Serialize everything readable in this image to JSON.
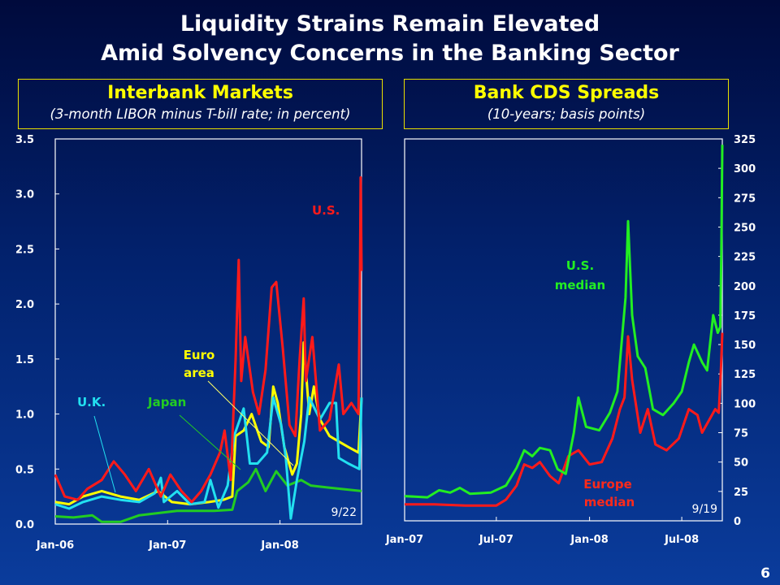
{
  "title_line1": "Liquidity Strains Remain Elevated",
  "title_line2": "Amid Solvency Concerns in the Banking Sector",
  "page_number": "6",
  "chart_data": [
    {
      "type": "line",
      "title": "Interbank Markets",
      "subtitle": "(3-month LIBOR minus T-bill rate; in percent)",
      "ylim": [
        0,
        3.5
      ],
      "yticks": [
        "0.0",
        "0.5",
        "1.0",
        "1.5",
        "2.0",
        "2.5",
        "3.0",
        "3.5"
      ],
      "xlim": [
        "2006-01-01",
        "2008-09-22"
      ],
      "xticks": [
        {
          "date": "2006-01-01",
          "label": "Jan-06"
        },
        {
          "date": "2007-01-01",
          "label": "Jan-07"
        },
        {
          "date": "2008-01-01",
          "label": "Jan-08"
        }
      ],
      "end_date_label": "9/22",
      "grid": false,
      "series": [
        {
          "name": "U.S.",
          "color": "#ff1a1a",
          "points": [
            [
              "2006-01-01",
              0.45
            ],
            [
              "2006-02-01",
              0.25
            ],
            [
              "2006-03-15",
              0.22
            ],
            [
              "2006-04-15",
              0.32
            ],
            [
              "2006-06-01",
              0.4
            ],
            [
              "2006-07-10",
              0.57
            ],
            [
              "2006-08-15",
              0.45
            ],
            [
              "2006-09-20",
              0.3
            ],
            [
              "2006-11-01",
              0.5
            ],
            [
              "2006-12-10",
              0.25
            ],
            [
              "2007-01-10",
              0.45
            ],
            [
              "2007-02-15",
              0.3
            ],
            [
              "2007-03-20",
              0.2
            ],
            [
              "2007-04-20",
              0.3
            ],
            [
              "2007-05-20",
              0.45
            ],
            [
              "2007-06-20",
              0.65
            ],
            [
              "2007-07-05",
              0.85
            ],
            [
              "2007-07-25",
              0.4
            ],
            [
              "2007-08-10",
              1.5
            ],
            [
              "2007-08-20",
              2.4
            ],
            [
              "2007-08-28",
              1.3
            ],
            [
              "2007-09-10",
              1.7
            ],
            [
              "2007-10-05",
              1.2
            ],
            [
              "2007-10-25",
              1.0
            ],
            [
              "2007-11-15",
              1.4
            ],
            [
              "2007-12-05",
              2.15
            ],
            [
              "2007-12-20",
              2.2
            ],
            [
              "2008-01-10",
              1.6
            ],
            [
              "2008-02-01",
              0.9
            ],
            [
              "2008-02-20",
              0.8
            ],
            [
              "2008-03-05",
              1.5
            ],
            [
              "2008-03-18",
              2.05
            ],
            [
              "2008-03-25",
              1.3
            ],
            [
              "2008-04-15",
              1.7
            ],
            [
              "2008-05-10",
              0.85
            ],
            [
              "2008-06-10",
              0.95
            ],
            [
              "2008-07-10",
              1.45
            ],
            [
              "2008-07-25",
              1.0
            ],
            [
              "2008-08-20",
              1.1
            ],
            [
              "2008-09-12",
              1.0
            ],
            [
              "2008-09-17",
              2.3
            ],
            [
              "2008-09-19",
              3.15
            ],
            [
              "2008-09-22",
              2.3
            ]
          ]
        },
        {
          "name": "Euro area",
          "color": "#ffff00",
          "points": [
            [
              "2006-01-01",
              0.2
            ],
            [
              "2006-02-15",
              0.18
            ],
            [
              "2006-04-01",
              0.25
            ],
            [
              "2006-06-01",
              0.3
            ],
            [
              "2006-08-01",
              0.25
            ],
            [
              "2006-10-01",
              0.22
            ],
            [
              "2006-12-01",
              0.3
            ],
            [
              "2007-01-15",
              0.2
            ],
            [
              "2007-03-15",
              0.18
            ],
            [
              "2007-05-15",
              0.2
            ],
            [
              "2007-07-01",
              0.22
            ],
            [
              "2007-07-30",
              0.25
            ],
            [
              "2007-08-10",
              0.8
            ],
            [
              "2007-09-05",
              0.85
            ],
            [
              "2007-10-01",
              1.0
            ],
            [
              "2007-11-01",
              0.75
            ],
            [
              "2007-11-25",
              0.7
            ],
            [
              "2007-12-10",
              1.25
            ],
            [
              "2007-12-25",
              1.1
            ],
            [
              "2008-01-15",
              0.7
            ],
            [
              "2008-02-10",
              0.45
            ],
            [
              "2008-02-25",
              0.55
            ],
            [
              "2008-03-10",
              1.0
            ],
            [
              "2008-03-18",
              1.65
            ],
            [
              "2008-04-05",
              1.0
            ],
            [
              "2008-04-20",
              1.25
            ],
            [
              "2008-05-10",
              0.95
            ],
            [
              "2008-06-10",
              0.8
            ],
            [
              "2008-07-10",
              0.75
            ],
            [
              "2008-08-10",
              0.7
            ],
            [
              "2008-09-12",
              0.65
            ],
            [
              "2008-09-22",
              1.15
            ]
          ]
        },
        {
          "name": "U.K.",
          "color": "#22e0f0",
          "points": [
            [
              "2006-01-01",
              0.18
            ],
            [
              "2006-02-15",
              0.14
            ],
            [
              "2006-04-01",
              0.2
            ],
            [
              "2006-06-01",
              0.25
            ],
            [
              "2006-08-01",
              0.22
            ],
            [
              "2006-10-01",
              0.2
            ],
            [
              "2006-11-20",
              0.28
            ],
            [
              "2006-12-10",
              0.42
            ],
            [
              "2006-12-20",
              0.2
            ],
            [
              "2007-02-01",
              0.3
            ],
            [
              "2007-03-15",
              0.18
            ],
            [
              "2007-05-01",
              0.2
            ],
            [
              "2007-05-20",
              0.4
            ],
            [
              "2007-06-15",
              0.15
            ],
            [
              "2007-07-15",
              0.35
            ],
            [
              "2007-08-05",
              0.8
            ],
            [
              "2007-09-05",
              1.05
            ],
            [
              "2007-09-25",
              0.55
            ],
            [
              "2007-10-20",
              0.55
            ],
            [
              "2007-11-20",
              0.65
            ],
            [
              "2007-12-10",
              1.15
            ],
            [
              "2008-01-05",
              0.9
            ],
            [
              "2008-01-20",
              0.6
            ],
            [
              "2008-02-05",
              0.05
            ],
            [
              "2008-02-25",
              0.4
            ],
            [
              "2008-03-20",
              0.75
            ],
            [
              "2008-04-05",
              1.15
            ],
            [
              "2008-05-10",
              0.95
            ],
            [
              "2008-06-10",
              1.1
            ],
            [
              "2008-07-01",
              1.1
            ],
            [
              "2008-07-10",
              0.6
            ],
            [
              "2008-08-10",
              0.55
            ],
            [
              "2008-09-15",
              0.5
            ],
            [
              "2008-09-22",
              1.15
            ]
          ]
        },
        {
          "name": "Japan",
          "color": "#22cc22",
          "points": [
            [
              "2006-01-01",
              0.07
            ],
            [
              "2006-03-01",
              0.06
            ],
            [
              "2006-05-01",
              0.08
            ],
            [
              "2006-06-01",
              0.02
            ],
            [
              "2006-08-01",
              0.02
            ],
            [
              "2006-10-01",
              0.08
            ],
            [
              "2006-12-01",
              0.1
            ],
            [
              "2007-02-01",
              0.12
            ],
            [
              "2007-04-01",
              0.12
            ],
            [
              "2007-06-01",
              0.12
            ],
            [
              "2007-07-30",
              0.13
            ],
            [
              "2007-08-15",
              0.3
            ],
            [
              "2007-09-20",
              0.38
            ],
            [
              "2007-10-15",
              0.5
            ],
            [
              "2007-11-15",
              0.3
            ],
            [
              "2007-12-20",
              0.48
            ],
            [
              "2008-01-25",
              0.35
            ],
            [
              "2008-03-10",
              0.4
            ],
            [
              "2008-04-10",
              0.35
            ],
            [
              "2008-06-10",
              0.33
            ],
            [
              "2008-09-22",
              0.3
            ]
          ]
        }
      ]
    },
    {
      "type": "line",
      "title": "Bank CDS Spreads",
      "subtitle": "(10-years; basis points)",
      "ylim": [
        0,
        325
      ],
      "yticks": [
        "0",
        "25",
        "50",
        "75",
        "100",
        "125",
        "150",
        "175",
        "200",
        "225",
        "250",
        "275",
        "300",
        "325"
      ],
      "xlim": [
        "2007-01-01",
        "2008-09-19"
      ],
      "xticks": [
        {
          "date": "2007-01-01",
          "label": "Jan-07"
        },
        {
          "date": "2007-07-01",
          "label": "Jul-07"
        },
        {
          "date": "2008-01-01",
          "label": "Jan-08"
        },
        {
          "date": "2008-07-01",
          "label": "Jul-08"
        }
      ],
      "end_date_label": "9/19",
      "grid": false,
      "series": [
        {
          "name": "U.S. median",
          "color": "#22ee22",
          "points": [
            [
              "2007-01-01",
              21
            ],
            [
              "2007-02-15",
              20
            ],
            [
              "2007-03-10",
              26
            ],
            [
              "2007-04-01",
              24
            ],
            [
              "2007-04-20",
              28
            ],
            [
              "2007-05-10",
              23
            ],
            [
              "2007-06-20",
              24
            ],
            [
              "2007-07-20",
              30
            ],
            [
              "2007-08-10",
              45
            ],
            [
              "2007-08-25",
              60
            ],
            [
              "2007-09-10",
              55
            ],
            [
              "2007-09-25",
              62
            ],
            [
              "2007-10-15",
              60
            ],
            [
              "2007-10-30",
              44
            ],
            [
              "2007-11-15",
              40
            ],
            [
              "2007-12-01",
              75
            ],
            [
              "2007-12-10",
              105
            ],
            [
              "2007-12-25",
              80
            ],
            [
              "2008-01-20",
              77
            ],
            [
              "2008-02-10",
              92
            ],
            [
              "2008-02-25",
              110
            ],
            [
              "2008-03-05",
              155
            ],
            [
              "2008-03-12",
              190
            ],
            [
              "2008-03-17",
              255
            ],
            [
              "2008-03-25",
              175
            ],
            [
              "2008-04-05",
              140
            ],
            [
              "2008-04-20",
              130
            ],
            [
              "2008-05-05",
              95
            ],
            [
              "2008-05-25",
              90
            ],
            [
              "2008-06-15",
              100
            ],
            [
              "2008-07-01",
              110
            ],
            [
              "2008-07-15",
              135
            ],
            [
              "2008-07-25",
              150
            ],
            [
              "2008-08-10",
              135
            ],
            [
              "2008-08-20",
              128
            ],
            [
              "2008-09-01",
              175
            ],
            [
              "2008-09-10",
              160
            ],
            [
              "2008-09-15",
              165
            ],
            [
              "2008-09-17",
              230
            ],
            [
              "2008-09-19",
              320
            ]
          ]
        },
        {
          "name": "Europe median",
          "color": "#ff1a1a",
          "points": [
            [
              "2007-01-01",
              14
            ],
            [
              "2007-03-01",
              14
            ],
            [
              "2007-05-01",
              13
            ],
            [
              "2007-07-01",
              13
            ],
            [
              "2007-07-20",
              18
            ],
            [
              "2007-08-10",
              30
            ],
            [
              "2007-08-25",
              48
            ],
            [
              "2007-09-10",
              45
            ],
            [
              "2007-09-25",
              50
            ],
            [
              "2007-10-15",
              38
            ],
            [
              "2007-11-01",
              32
            ],
            [
              "2007-11-20",
              55
            ],
            [
              "2007-12-10",
              60
            ],
            [
              "2008-01-01",
              48
            ],
            [
              "2008-01-25",
              50
            ],
            [
              "2008-02-15",
              70
            ],
            [
              "2008-03-01",
              95
            ],
            [
              "2008-03-10",
              105
            ],
            [
              "2008-03-17",
              157
            ],
            [
              "2008-03-25",
              120
            ],
            [
              "2008-04-10",
              75
            ],
            [
              "2008-04-25",
              95
            ],
            [
              "2008-05-10",
              65
            ],
            [
              "2008-06-01",
              60
            ],
            [
              "2008-06-25",
              70
            ],
            [
              "2008-07-15",
              95
            ],
            [
              "2008-08-01",
              90
            ],
            [
              "2008-08-10",
              75
            ],
            [
              "2008-09-05",
              95
            ],
            [
              "2008-09-12",
              92
            ],
            [
              "2008-09-16",
              125
            ],
            [
              "2008-09-19",
              160
            ]
          ]
        }
      ]
    }
  ],
  "annotations": {
    "us": "U.S.",
    "euro_1": "Euro",
    "euro_2": "area",
    "uk": "U.K.",
    "japan": "Japan",
    "us_median_1": "U.S.",
    "us_median_2": "median",
    "europe_median_1": "Europe",
    "europe_median_2": "median"
  }
}
